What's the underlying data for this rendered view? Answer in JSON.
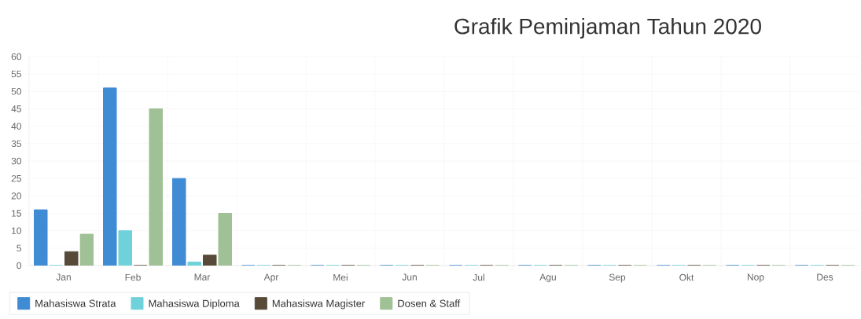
{
  "chart_data": {
    "type": "bar",
    "title": "Grafik Peminjaman Tahun 2020",
    "categories": [
      "Jan",
      "Feb",
      "Mar",
      "Apr",
      "Mei",
      "Jun",
      "Jul",
      "Agu",
      "Sep",
      "Okt",
      "Nop",
      "Des"
    ],
    "series": [
      {
        "name": "Mahasiswa Strata",
        "color": "#3f8bd4",
        "values": [
          16,
          51,
          25,
          0,
          0,
          0,
          0,
          0,
          0,
          0,
          0,
          0
        ]
      },
      {
        "name": "Mahasiswa Diploma",
        "color": "#6fd2da",
        "values": [
          0,
          10,
          1,
          0,
          0,
          0,
          0,
          0,
          0,
          0,
          0,
          0
        ]
      },
      {
        "name": "Mahasiswa Magister",
        "color": "#574a38",
        "values": [
          4,
          0,
          3,
          0,
          0,
          0,
          0,
          0,
          0,
          0,
          0,
          0
        ]
      },
      {
        "name": "Dosen & Staff",
        "color": "#a0c095",
        "values": [
          9,
          45,
          15,
          0,
          0,
          0,
          0,
          0,
          0,
          0,
          0,
          0
        ]
      }
    ],
    "ylim": [
      0,
      60
    ],
    "yticks": [
      0,
      5,
      10,
      15,
      20,
      25,
      30,
      35,
      40,
      45,
      50,
      55,
      60
    ],
    "grid": true,
    "legend": "bottom"
  }
}
